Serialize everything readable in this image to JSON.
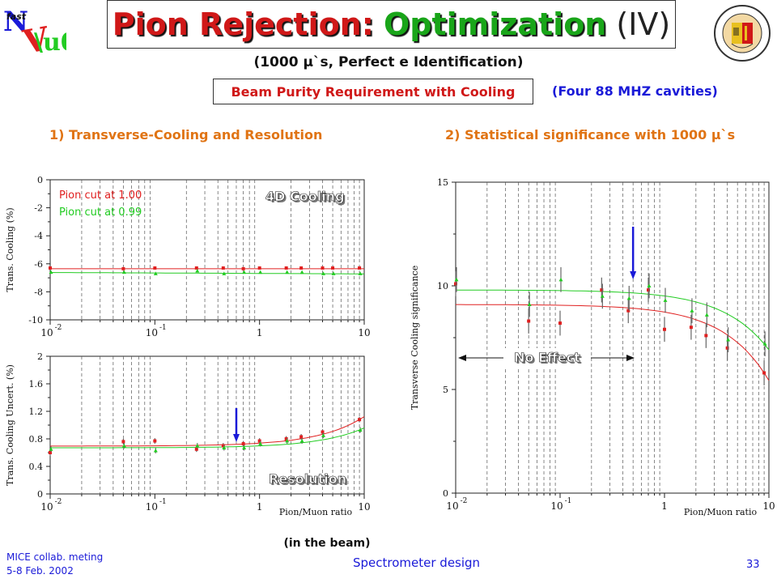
{
  "title": {
    "part1": "Pion Rejection:",
    "part2": "Optimization",
    "part3": "(IV)"
  },
  "subtitle": "(1000 μ`s, Perfect e Identification)",
  "beam_box": "Beam Purity Requirement with Cooling",
  "cavities": "(Four 88 MHZ cavities)",
  "section1": "1) Transverse-Cooling and Resolution",
  "section2": "2) Statistical significance with 1000 μ`s",
  "footer": {
    "line1": "MICE collab. meting",
    "line2": "5-8 Feb. 2002",
    "center": "Spectrometer design",
    "page": "33"
  },
  "colors": {
    "red": "#e02020",
    "green": "#22cc22",
    "blue": "#1a1ad8",
    "orange": "#e07414"
  },
  "chart_data": [
    {
      "type": "scatter",
      "xlabel": "",
      "ylabel": "Trans. Cooling (%)",
      "xscale": "log",
      "xlim": [
        0.01,
        10
      ],
      "ylim": [
        -10,
        0
      ],
      "yticks": [
        0,
        -2,
        -4,
        -6,
        -8,
        -10
      ],
      "xticks": [
        "10-2",
        "10-1",
        "1",
        "10"
      ],
      "grid": "vertical",
      "annotations": [
        "4D Cooling"
      ],
      "legend_labels": [
        "Pion cut at 1.00",
        "Pion cut at 0.99"
      ],
      "series": [
        {
          "name": "Pion cut at 1.00",
          "color": "red",
          "x": [
            0.01,
            0.05,
            0.1,
            0.25,
            0.45,
            0.7,
            1,
            1.8,
            2.5,
            4,
            5,
            9
          ],
          "y": [
            -6.3,
            -6.35,
            -6.3,
            -6.3,
            -6.3,
            -6.35,
            -6.3,
            -6.3,
            -6.3,
            -6.3,
            -6.3,
            -6.3
          ],
          "fit": [
            -6.35,
            -6.35
          ]
        },
        {
          "name": "Pion cut at 0.99",
          "color": "green",
          "x": [
            0.01,
            0.05,
            0.1,
            0.25,
            0.45,
            0.7,
            1,
            1.8,
            2.5,
            4,
            5,
            9
          ],
          "y": [
            -6.6,
            -6.6,
            -6.7,
            -6.5,
            -6.7,
            -6.6,
            -6.6,
            -6.6,
            -6.6,
            -6.7,
            -6.7,
            -6.7
          ],
          "fit": [
            -6.62,
            -6.72
          ]
        }
      ]
    },
    {
      "type": "scatter",
      "xlabel": "Pion/Muon ratio",
      "ylabel": "Trans. Cooling Uncert. (%)",
      "xscale": "log",
      "xlim": [
        0.01,
        10
      ],
      "ylim": [
        0,
        2
      ],
      "yticks": [
        0,
        0.4,
        0.8,
        1.2,
        1.6,
        2
      ],
      "yticklabels": [
        "0",
        "0.4",
        "0.8",
        "1.2",
        "1.6",
        "2"
      ],
      "xticks": [
        "10-2",
        "10-1",
        "1",
        "10"
      ],
      "grid": "vertical",
      "annotations": [
        "Resolution",
        "(in the beam)"
      ],
      "arrow_x": 0.6,
      "series": [
        {
          "name": "Pion cut at 1.00",
          "color": "red",
          "x": [
            0.01,
            0.05,
            0.1,
            0.25,
            0.45,
            0.7,
            1,
            1.8,
            2.5,
            4,
            9
          ],
          "y": [
            0.6,
            0.76,
            0.77,
            0.65,
            0.7,
            0.73,
            0.77,
            0.8,
            0.83,
            0.9,
            1.08
          ],
          "err": [
            0.05,
            0.04,
            0.04,
            0.04,
            0.04,
            0.04,
            0.04,
            0.04,
            0.04,
            0.04,
            0.04
          ]
        },
        {
          "name": "Pion cut at 0.99",
          "color": "green",
          "x": [
            0.01,
            0.05,
            0.1,
            0.25,
            0.45,
            0.7,
            1,
            1.8,
            2.5,
            4,
            9
          ],
          "y": [
            0.65,
            0.7,
            0.63,
            0.7,
            0.67,
            0.67,
            0.73,
            0.77,
            0.77,
            0.85,
            0.93
          ],
          "err": [
            0.04,
            0.04,
            0.04,
            0.04,
            0.04,
            0.04,
            0.04,
            0.04,
            0.04,
            0.04,
            0.04
          ]
        }
      ]
    },
    {
      "type": "scatter",
      "xlabel": "Pion/Muon ratio",
      "ylabel": "Transverse Cooling significance",
      "xscale": "log",
      "xlim": [
        0.01,
        10
      ],
      "ylim": [
        0,
        15
      ],
      "yticks": [
        0,
        5,
        10,
        15
      ],
      "xticks": [
        "10-2",
        "10-1",
        "1",
        "10"
      ],
      "grid": "vertical",
      "annotations": [
        "No Effect"
      ],
      "arrow_x": 0.5,
      "series": [
        {
          "name": "Pion cut at 1.00",
          "color": "red",
          "x": [
            0.01,
            0.05,
            0.1,
            0.25,
            0.45,
            0.7,
            1,
            1.8,
            2.5,
            4,
            9
          ],
          "y": [
            10.1,
            8.3,
            8.2,
            9.8,
            8.8,
            9.8,
            7.9,
            8.0,
            7.6,
            7.0,
            5.8
          ],
          "err": [
            0.6,
            0.6,
            0.6,
            0.6,
            0.6,
            0.6,
            0.6,
            0.6,
            0.6,
            0.6,
            0.6
          ]
        },
        {
          "name": "Pion cut at 0.99",
          "color": "green",
          "x": [
            0.01,
            0.05,
            0.1,
            0.25,
            0.45,
            0.7,
            1,
            1.8,
            2.5,
            4,
            9
          ],
          "y": [
            10.3,
            9.1,
            10.3,
            9.5,
            9.4,
            10.0,
            9.3,
            8.8,
            8.6,
            7.4,
            7.2
          ],
          "err": [
            0.6,
            0.6,
            0.6,
            0.6,
            0.6,
            0.6,
            0.6,
            0.6,
            0.6,
            0.6,
            0.6
          ]
        }
      ]
    }
  ]
}
